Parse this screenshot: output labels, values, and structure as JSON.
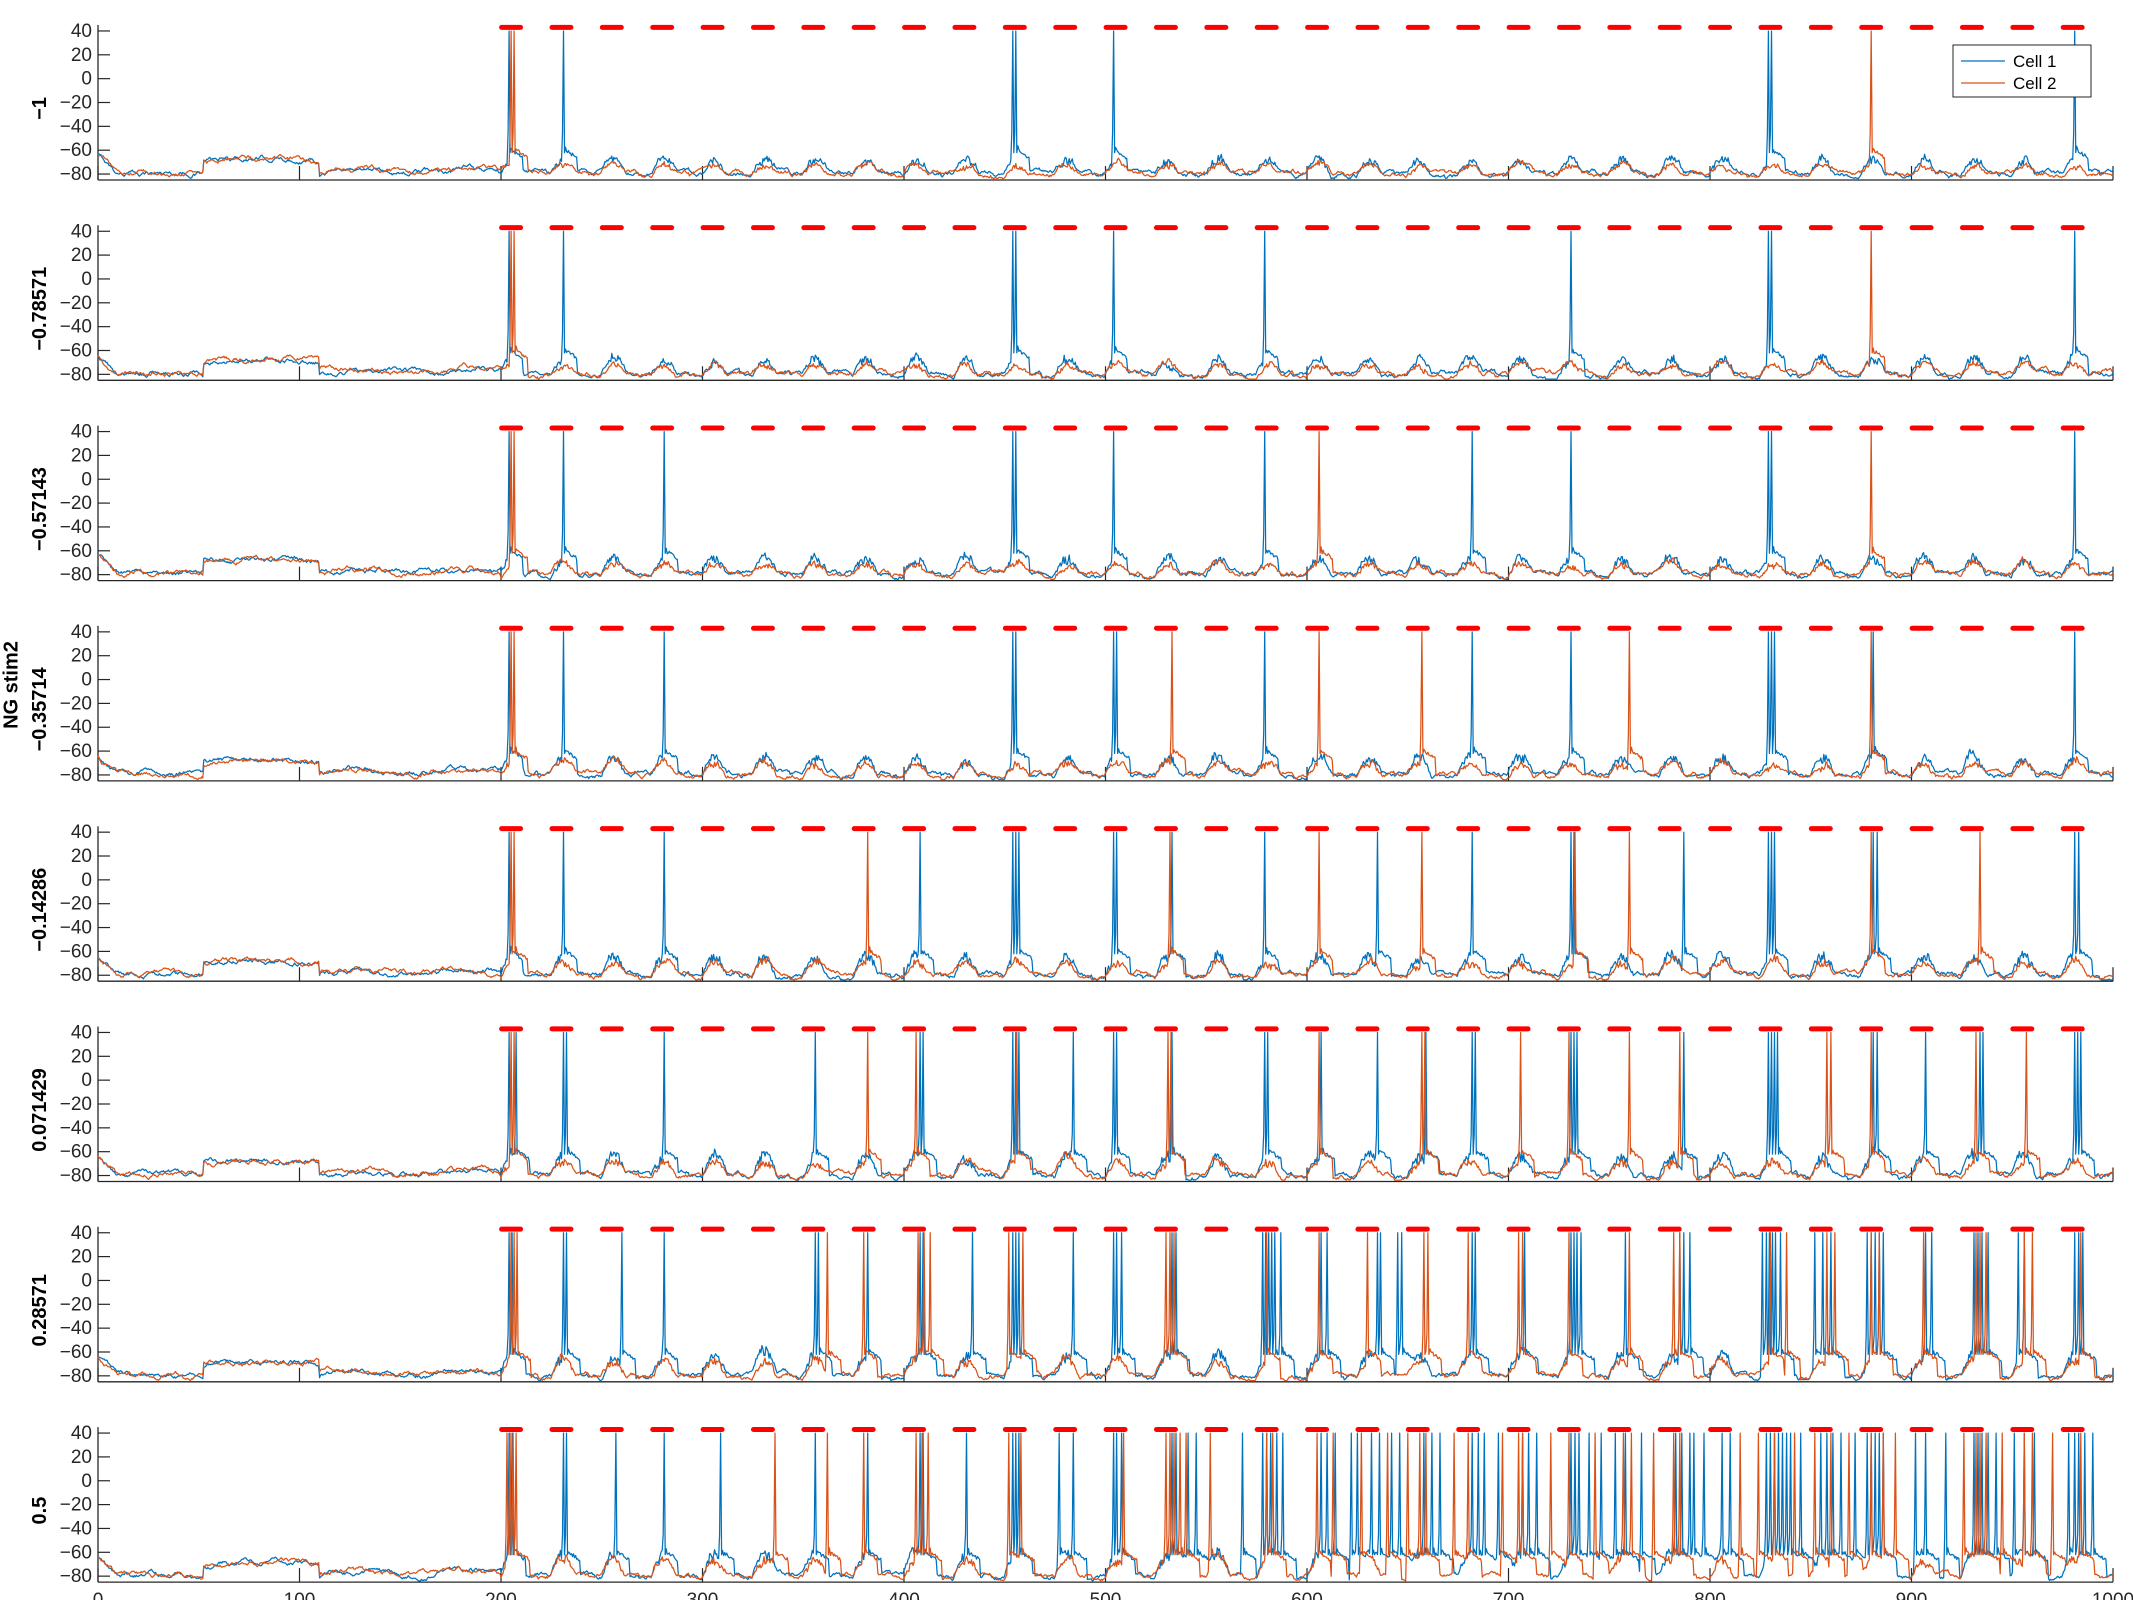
{
  "figure": {
    "shared_ylabel": "NG stim2"
  },
  "chart_data": {
    "type": "line",
    "title": "",
    "xlabel": "",
    "shared_ylabel": "NG stim2",
    "xlim": [
      0,
      1000
    ],
    "x_ticks": [
      0,
      100,
      200,
      300,
      400,
      500,
      600,
      700,
      800,
      900,
      1000
    ],
    "ylim": [
      -85,
      45
    ],
    "y_ticks": [
      40,
      20,
      0,
      -20,
      -40,
      -60,
      -80
    ],
    "legend": {
      "placement": "top-right",
      "entries": [
        {
          "name": "Cell 1",
          "color": "#0072BD"
        },
        {
          "name": "Cell 2",
          "color": "#D95319"
        }
      ]
    },
    "stim_marker": {
      "color": "#FF0000",
      "y": 43,
      "start": 200,
      "period": 25,
      "duration": 10
    },
    "panels": [
      {
        "label": "-1",
        "series": [
          {
            "name": "Cell 1",
            "spike_times": [
              204,
              231,
              454,
              455.5,
              504,
              829,
              830.5,
              981
            ]
          },
          {
            "name": "Cell 2",
            "spike_times": [
              205,
              206.5,
              880
            ]
          }
        ]
      },
      {
        "label": "-0.78571",
        "series": [
          {
            "name": "Cell 1",
            "spike_times": [
              204,
              231,
              454,
              455.5,
              504,
              579,
              731,
              829,
              830.5,
              981
            ]
          },
          {
            "name": "Cell 2",
            "spike_times": [
              205,
              206.5,
              880
            ]
          }
        ]
      },
      {
        "label": "-0.57143",
        "series": [
          {
            "name": "Cell 1",
            "spike_times": [
              204,
              231,
              281,
              454,
              455.5,
              504,
              579,
              682,
              731,
              829,
              830.5,
              981
            ]
          },
          {
            "name": "Cell 2",
            "spike_times": [
              205,
              206.5,
              606,
              880
            ]
          }
        ]
      },
      {
        "label": "-0.35714",
        "series": [
          {
            "name": "Cell 1",
            "spike_times": [
              204,
              231,
              281,
              454,
              455.5,
              504,
              505.5,
              579,
              682,
              731,
              829,
              830.5,
              832,
              881,
              981
            ]
          },
          {
            "name": "Cell 2",
            "spike_times": [
              205,
              206.5,
              533,
              606,
              657,
              760,
              880
            ]
          }
        ]
      },
      {
        "label": "-0.14286",
        "series": [
          {
            "name": "Cell 1",
            "spike_times": [
              204,
              231,
              281,
              408,
              454,
              455.5,
              457,
              504,
              505.5,
              533,
              579,
              635,
              682,
              731,
              732.5,
              787,
              829,
              830.5,
              832,
              881,
              883,
              981,
              983
            ]
          },
          {
            "name": "Cell 2",
            "spike_times": [
              205,
              206.5,
              382,
              532,
              606,
              657,
              733,
              760,
              880,
              934
            ]
          }
        ]
      },
      {
        "label": "0.071429",
        "series": [
          {
            "name": "Cell 1",
            "spike_times": [
              204,
              207.5,
              231,
              232.5,
              281,
              356,
              408,
              409.5,
              454,
              455.5,
              457,
              484,
              504,
              505.5,
              533,
              579,
              580.5,
              607,
              635,
              659,
              682,
              683.5,
              731,
              732.5,
              734,
              787,
              829,
              830.5,
              832,
              833.5,
              881,
              883,
              907,
              934,
              935.5,
              981,
              982.5,
              984
            ]
          },
          {
            "name": "Cell 2",
            "spike_times": [
              205,
              206.5,
              382,
              406,
              456,
              531,
              532.5,
              606,
              657,
              658.5,
              706,
              730,
              760,
              785,
              858,
              860,
              880,
              932,
              957
            ]
          }
        ]
      },
      {
        "label": "0.28571",
        "series": [
          {
            "name": "Cell 1",
            "spike_times": [
              204,
              205.5,
              231,
              232.5,
              260,
              281,
              356,
              357.5,
              382,
              408,
              409.5,
              434,
              454,
              455.5,
              457,
              484,
              504,
              505.5,
              508,
              533,
              535,
              578,
              579.5,
              581,
              582.5,
              584,
              587,
              607,
              610,
              635,
              636.5,
              645,
              647,
              682,
              683.5,
              708,
              731,
              732.5,
              734,
              736,
              758,
              785,
              787,
              790,
              826,
              828,
              829.5,
              831,
              832.5,
              835,
              852,
              856,
              860,
              878,
              880,
              882,
              884,
              886,
              907,
              910,
              931,
              933,
              935,
              938,
              953,
              956,
              981,
              983,
              985
            ]
          },
          {
            "name": "Cell 2",
            "spike_times": [
              205,
              206.5,
              208,
              362,
              380,
              407,
              410,
              413,
              452,
              459,
              530,
              532,
              534,
              580,
              606,
              630,
              658,
              660,
              680,
              705,
              707,
              730,
              760,
              782,
              785,
              830,
              838,
              858,
              862,
              880,
              884,
              906,
              932,
              934,
              937,
              956,
              960,
              984
            ]
          }
        ]
      },
      {
        "label": "0.5",
        "series": [
          {
            "name": "Cell 1",
            "spike_times": [
              204,
              205.5,
              231,
              232.5,
              257,
              281,
              309,
              356,
              382,
              408,
              409.5,
              431,
              454,
              455.5,
              457,
              477,
              484,
              504,
              505.5,
              508,
              533,
              535,
              541,
              545,
              568,
              578,
              580,
              582,
              585,
              588,
              607,
              610,
              614,
              622,
              625,
              632,
              636,
              642,
              646,
              658,
              662,
              666,
              682,
              685,
              688,
              695,
              707,
              710,
              714,
              731,
              733,
              735,
              740,
              746,
              753,
              758,
              766,
              783,
              786,
              790,
              792,
              797,
              806,
              810,
              828,
              830,
              832,
              834,
              836,
              838,
              840,
              845,
              855,
              858,
              861,
              865,
              872,
              878,
              880,
              882,
              884,
              886,
              902,
              907,
              917,
              931,
              933,
              935,
              938,
              942,
              951,
              956,
              961,
              978,
              981,
              983,
              986,
              990
            ]
          },
          {
            "name": "Cell 2",
            "spike_times": [
              203,
              204.5,
              206,
              207.5,
              336,
              362,
              380,
              406,
              409,
              412,
              452,
              458,
              509,
              530,
              532,
              534,
              537,
              540,
              552,
              580,
              583,
              605,
              613,
              627,
              640,
              650,
              656,
              659,
              673,
              680,
              697,
              705,
              707,
              721,
              730,
              743,
              757,
              761,
              772,
              782,
              785,
              815,
              824,
              832,
              842,
              852,
              860,
              869,
              880,
              886,
              892,
              926,
              932,
              934,
              937,
              945,
              956,
              960,
              970,
              984
            ]
          }
        ]
      }
    ]
  }
}
